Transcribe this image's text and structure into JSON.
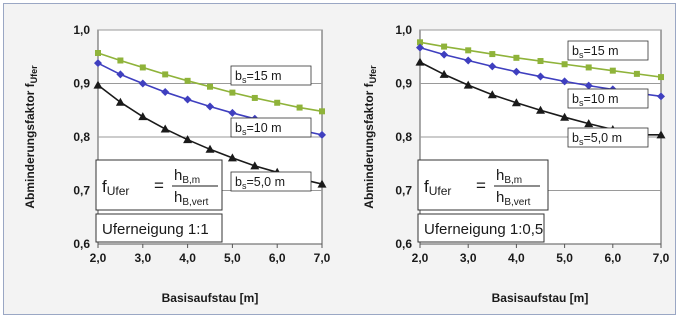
{
  "colors": {
    "green": "#8fb33a",
    "blue": "#3f3fbf",
    "black": "#1a1a1a",
    "background": "#f3f3f3"
  },
  "chart_data": [
    {
      "type": "line",
      "xlabel": "Basisaufstau [m]",
      "ylabel": "Abminderungsfaktor f",
      "ylabel_sub": "Ufer",
      "xlim": [
        2.0,
        7.0
      ],
      "ylim": [
        0.6,
        1.0
      ],
      "xticks": [
        "2,0",
        "3,0",
        "4,0",
        "5,0",
        "6,0",
        "7,0"
      ],
      "yticks": [
        "0,6",
        "0,7",
        "0,8",
        "0,9",
        "1,0"
      ],
      "grid": "horizontal",
      "formula": {
        "lhs": "f",
        "lhs_sub": "Ufer",
        "eq": "=",
        "num": "h",
        "num_sub": "B,m",
        "den": "h",
        "den_sub": "B,vert"
      },
      "note": "Uferneigung 1:1",
      "x": [
        2.0,
        2.5,
        3.0,
        3.5,
        4.0,
        4.5,
        5.0,
        5.5,
        6.0,
        6.5,
        7.0
      ],
      "series": [
        {
          "label": "b",
          "label_sub": "s",
          "label_rest": "=15 m",
          "color": "green",
          "marker": "square",
          "values": [
            0.957,
            0.943,
            0.93,
            0.917,
            0.905,
            0.894,
            0.883,
            0.873,
            0.864,
            0.855,
            0.848
          ]
        },
        {
          "label": "b",
          "label_sub": "s",
          "label_rest": "=10 m",
          "color": "blue",
          "marker": "diamond",
          "values": [
            0.938,
            0.917,
            0.9,
            0.884,
            0.87,
            0.857,
            0.845,
            0.834,
            0.823,
            0.813,
            0.804
          ]
        },
        {
          "label": "b",
          "label_sub": "s",
          "label_rest": "=5,0 m",
          "color": "black",
          "marker": "triangle",
          "values": [
            0.897,
            0.865,
            0.838,
            0.815,
            0.795,
            0.777,
            0.761,
            0.746,
            0.734,
            0.722,
            0.712
          ]
        }
      ]
    },
    {
      "type": "line",
      "xlabel": "Basisaufstau [m]",
      "ylabel": "Abminderungsfaktor f",
      "ylabel_sub": "Ufer",
      "xlim": [
        2.0,
        7.0
      ],
      "ylim": [
        0.6,
        1.0
      ],
      "xticks": [
        "2,0",
        "3,0",
        "4,0",
        "5,0",
        "6,0",
        "7,0"
      ],
      "yticks": [
        "0,6",
        "0,7",
        "0,8",
        "0,9",
        "1,0"
      ],
      "grid": "horizontal",
      "formula": {
        "lhs": "f",
        "lhs_sub": "Ufer",
        "eq": "=",
        "num": "h",
        "num_sub": "B,m",
        "den": "h",
        "den_sub": "B,vert"
      },
      "note": "Uferneigung 1:0,5",
      "x": [
        2.0,
        2.5,
        3.0,
        3.5,
        4.0,
        4.5,
        5.0,
        5.5,
        6.0,
        6.5,
        7.0
      ],
      "series": [
        {
          "label": "b",
          "label_sub": "s",
          "label_rest": "=15 m",
          "color": "green",
          "marker": "square",
          "values": [
            0.977,
            0.969,
            0.962,
            0.955,
            0.948,
            0.942,
            0.936,
            0.93,
            0.924,
            0.918,
            0.912
          ]
        },
        {
          "label": "b",
          "label_sub": "s",
          "label_rest": "=10 m",
          "color": "blue",
          "marker": "diamond",
          "values": [
            0.967,
            0.954,
            0.943,
            0.932,
            0.922,
            0.913,
            0.904,
            0.896,
            0.889,
            0.882,
            0.876
          ]
        },
        {
          "label": "b",
          "label_sub": "s",
          "label_rest": "=5,0 m",
          "color": "black",
          "marker": "triangle",
          "values": [
            0.94,
            0.917,
            0.897,
            0.879,
            0.864,
            0.85,
            0.837,
            0.825,
            0.814,
            0.804,
            0.804
          ]
        }
      ]
    }
  ]
}
